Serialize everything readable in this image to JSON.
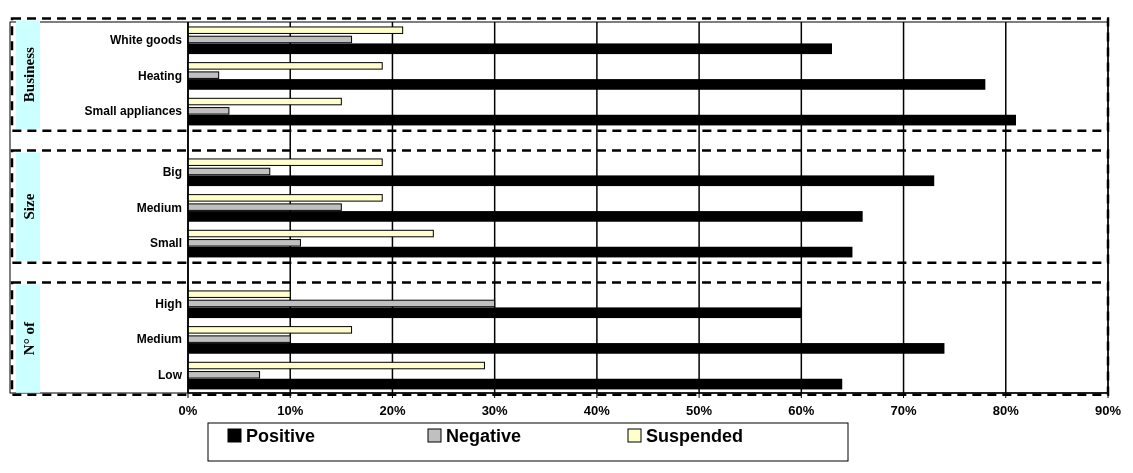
{
  "chart_data": {
    "type": "bar",
    "orientation": "horizontal",
    "categories": [
      "White goods",
      "Heating",
      "Small appliances",
      "Big",
      "Medium",
      "Small",
      "High",
      "Medium",
      "Low"
    ],
    "series": [
      {
        "name": "Positive",
        "color": "#000000",
        "values": [
          63,
          78,
          81,
          73,
          66,
          65,
          60,
          74,
          64
        ]
      },
      {
        "name": "Negative",
        "color": "#c0c0c0",
        "values": [
          16,
          3,
          4,
          8,
          15,
          11,
          30,
          10,
          7
        ]
      },
      {
        "name": "Suspended",
        "color": "#ffffcc",
        "values": [
          21,
          19,
          15,
          19,
          19,
          24,
          10,
          16,
          29
        ]
      }
    ],
    "xlim": [
      0,
      90
    ],
    "xticks": [
      {
        "value": 0,
        "label": "0%"
      },
      {
        "value": 10,
        "label": "10%"
      },
      {
        "value": 20,
        "label": "20%"
      },
      {
        "value": 30,
        "label": "30%"
      },
      {
        "value": 40,
        "label": "40%"
      },
      {
        "value": 50,
        "label": "50%"
      },
      {
        "value": 60,
        "label": "60%"
      },
      {
        "value": 70,
        "label": "70%"
      },
      {
        "value": 80,
        "label": "80%"
      },
      {
        "value": 90,
        "label": "90%"
      }
    ],
    "annotations": [
      "Business",
      "Size",
      "N° of"
    ],
    "grid": "x",
    "legend": "bottom"
  }
}
